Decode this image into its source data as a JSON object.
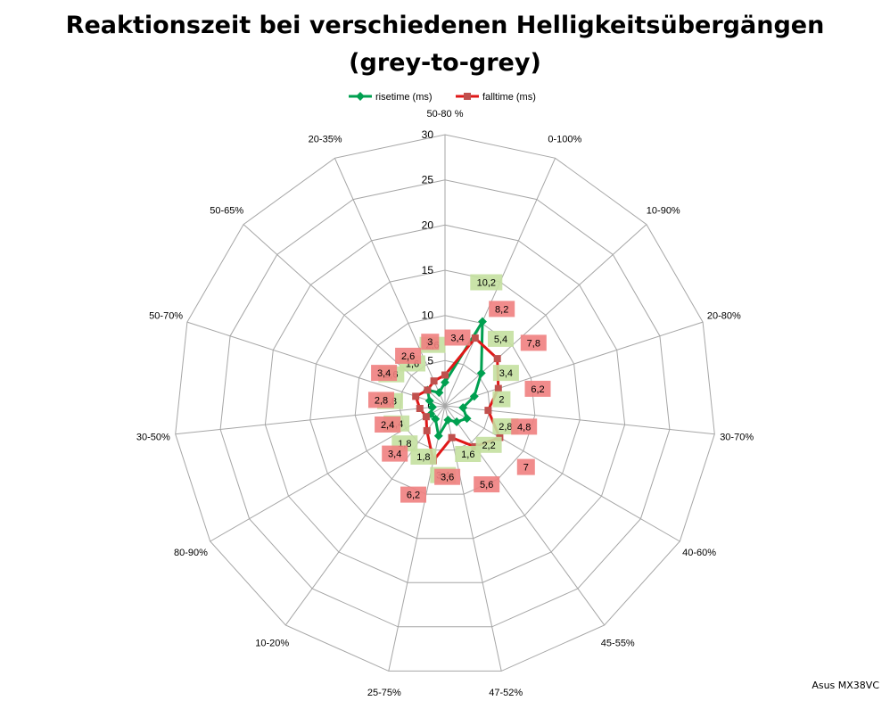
{
  "chart_data": {
    "type": "radar",
    "title_line1": "Reaktionszeit bei verschiedenen Helligkeitsübergängen",
    "title_line2": "(grey-to-grey)",
    "categories": [
      "50-80 %",
      "0-100%",
      "10-90%",
      "20-80%",
      "30-70%",
      "40-60%",
      "45-55%",
      "47-52%",
      "25-75%",
      "10-20%",
      "80-90%",
      "30-50%",
      "50-70%",
      "50-65%",
      "20-35%"
    ],
    "rlim": [
      0,
      30
    ],
    "ticks": [
      0,
      5,
      10,
      15,
      20,
      25,
      30
    ],
    "tick_labels": [
      "0",
      "5",
      "10",
      "15",
      "20",
      "25",
      "30"
    ],
    "grid": true,
    "legend_position": "top",
    "series": [
      {
        "name": "risetime (ms)",
        "color": "#00a050",
        "label_bg": "#c4e0a0",
        "values": [
          2.6,
          10.2,
          5.4,
          3.4,
          2,
          2.8,
          2.2,
          1.6,
          3.4,
          1.8,
          1.8,
          1.4,
          1.8,
          2.6,
          1.6
        ],
        "labels": [
          "2,6",
          "10,2",
          "5,4",
          "3,4",
          "2",
          "2,8",
          "2,2",
          "1,6",
          "3,4",
          "1,8",
          "1,8",
          "1,4",
          "1,8",
          "2,6",
          "1,6"
        ]
      },
      {
        "name": "falltime (ms)",
        "color": "#e01818",
        "label_bg": "#f08080",
        "values": [
          3.4,
          8.2,
          7.8,
          6.2,
          4.8,
          7,
          5.6,
          3.6,
          6.2,
          3.4,
          2.4,
          2.8,
          3.4,
          2.6,
          3
        ],
        "labels": [
          "3,4",
          "8,2",
          "7,8",
          "6,2",
          "4,8",
          "7",
          "5,6",
          "3,6",
          "6,2",
          "3,4",
          "2,4",
          "2,8",
          "3,4",
          "2,6",
          "3"
        ]
      }
    ]
  },
  "footer": {
    "credit": "Asus MX38VC"
  }
}
